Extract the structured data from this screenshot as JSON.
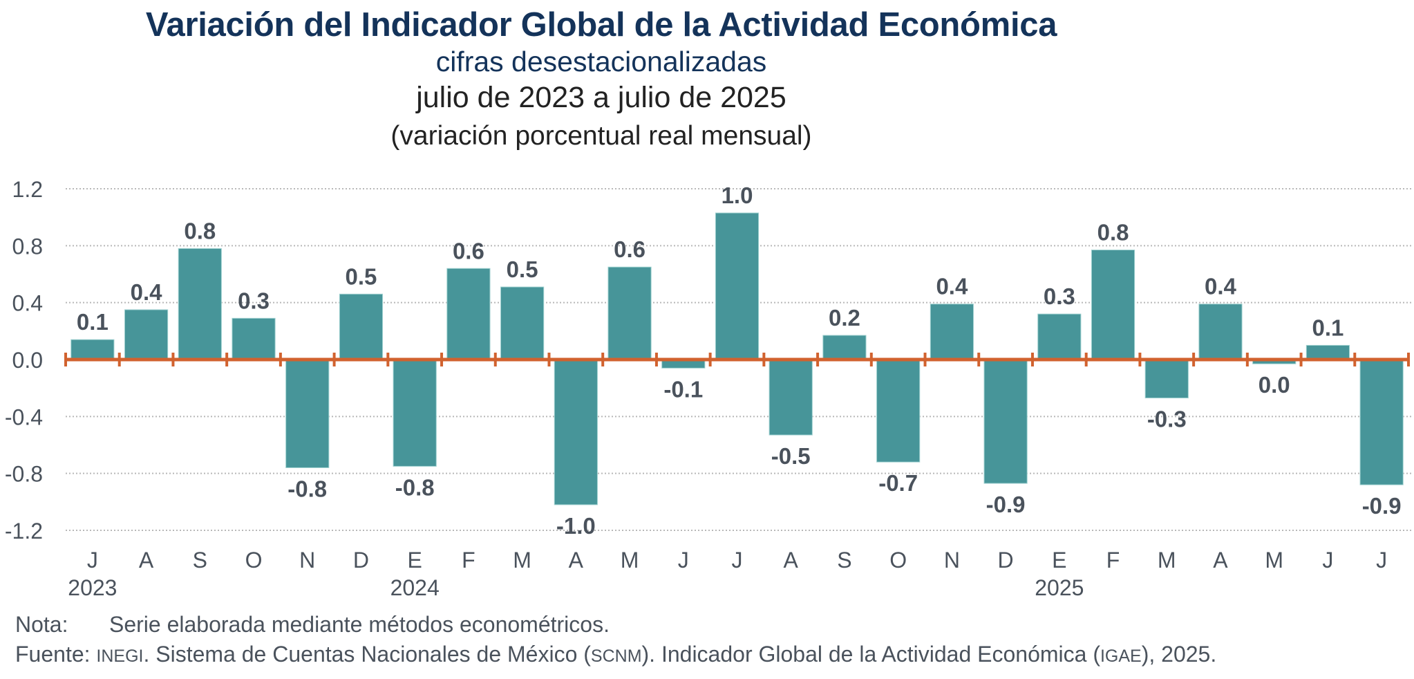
{
  "header": {
    "title": "Variación del Indicador Global de la Actividad Económica",
    "subtitle": "cifras desestacionalizadas",
    "period": "julio de 2023 a julio de 2025",
    "unit": "(variación porcentual real mensual)"
  },
  "colors": {
    "title": "#14335a",
    "bar": "#479599",
    "zero_axis": "#d1622f",
    "grid": "#b8b8b8",
    "text": "#4a525c"
  },
  "chart_data": {
    "type": "bar",
    "title": "Variación del Indicador Global de la Actividad Económica",
    "subtitle": "cifras desestacionalizadas, julio de 2023 a julio de 2025 (variación porcentual real mensual)",
    "xlabel": "",
    "ylabel": "",
    "ylim": [
      -1.2,
      1.2
    ],
    "yticks": [
      1.2,
      0.8,
      0.4,
      0.0,
      -0.4,
      -0.8,
      -1.2
    ],
    "ytick_labels": [
      "1.2",
      "0.8",
      "0.4",
      "0.0",
      "-0.4",
      "-0.8",
      "-1.2"
    ],
    "grid": true,
    "legend": "none",
    "categories": [
      "J",
      "A",
      "S",
      "O",
      "N",
      "D",
      "E",
      "F",
      "M",
      "A",
      "M",
      "J",
      "J",
      "A",
      "S",
      "O",
      "N",
      "D",
      "E",
      "F",
      "M",
      "A",
      "M",
      "J",
      "J"
    ],
    "year_labels": [
      {
        "index": 0,
        "label": "2023"
      },
      {
        "index": 6,
        "label": "2024"
      },
      {
        "index": 18,
        "label": "2025"
      }
    ],
    "values": [
      0.14,
      0.35,
      0.78,
      0.29,
      -0.76,
      0.46,
      -0.75,
      0.64,
      0.51,
      -1.02,
      0.65,
      -0.06,
      1.03,
      -0.53,
      0.17,
      -0.72,
      0.39,
      -0.87,
      0.32,
      0.77,
      -0.27,
      0.39,
      -0.03,
      0.1,
      -0.88
    ],
    "data_labels": [
      "0.1",
      "0.4",
      "0.8",
      "0.3",
      "-0.8",
      "0.5",
      "-0.8",
      "0.6",
      "0.5",
      "-1.0",
      "0.6",
      "-0.1",
      "1.0",
      "-0.5",
      "0.2",
      "-0.7",
      "0.4",
      "-0.9",
      "0.3",
      "0.8",
      "-0.3",
      "0.4",
      "0.0",
      "0.1",
      "-0.9"
    ]
  },
  "footer": {
    "note_key": "Nota:",
    "note_text": "Serie elaborada mediante métodos econométricos.",
    "source_key": "Fuente:",
    "source_parts": {
      "a": "INEGI",
      "b": ". Sistema de Cuentas Nacionales de México (",
      "c": "SCNM",
      "d": "). Indicador Global de la Actividad Económica (",
      "e": "IGAE",
      "f": "), 2025."
    }
  }
}
